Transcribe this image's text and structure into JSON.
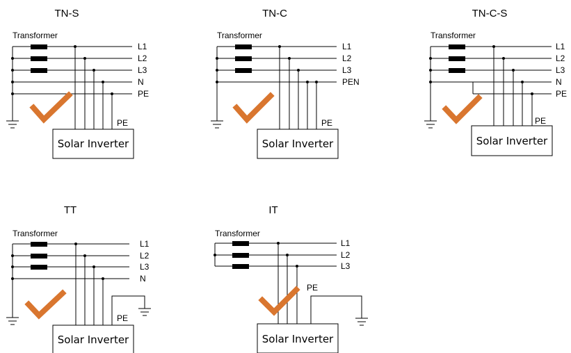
{
  "colors": {
    "check": "#d9762f",
    "line": "#000000"
  },
  "panels": [
    {
      "title": "TN-S",
      "transformer": "Transformer",
      "lines": [
        "L1",
        "L2",
        "L3",
        "N",
        "PE"
      ],
      "pe_label": "PE",
      "inverter": "Solar Inverter",
      "check_icon": "checkmark-icon"
    },
    {
      "title": "TN-C",
      "transformer": "Transformer",
      "lines": [
        "L1",
        "L2",
        "L3",
        "PEN"
      ],
      "pe_label": "PE",
      "inverter": "Solar Inverter",
      "check_icon": "checkmark-icon"
    },
    {
      "title": "TN-C-S",
      "transformer": "Transformer",
      "lines": [
        "L1",
        "L2",
        "L3",
        "N",
        "PE"
      ],
      "pe_label": "PE",
      "inverter": "Solar Inverter",
      "check_icon": "checkmark-icon"
    },
    {
      "title": "TT",
      "transformer": "Transformer",
      "lines": [
        "L1",
        "L2",
        "L3",
        "N"
      ],
      "pe_label": "PE",
      "inverter": "Solar Inverter",
      "check_icon": "checkmark-icon"
    },
    {
      "title": "IT",
      "transformer": "Transformer",
      "lines": [
        "L1",
        "L2",
        "L3"
      ],
      "pe_label": "PE",
      "inverter": "Solar Inverter",
      "check_icon": "checkmark-icon"
    }
  ]
}
